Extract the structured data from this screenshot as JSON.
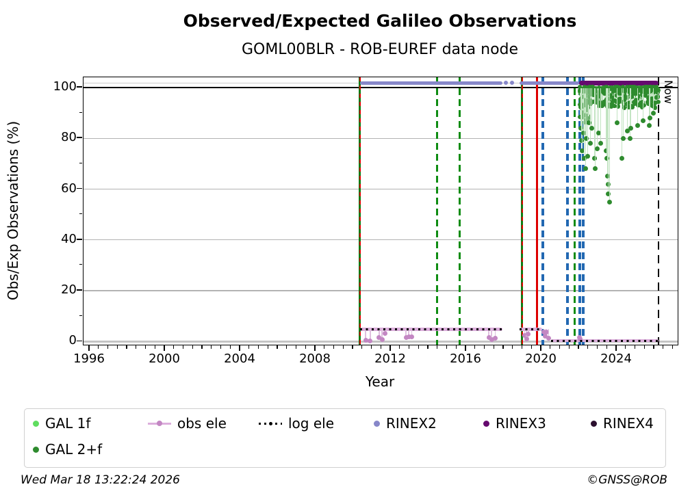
{
  "title": "Observed/Expected Galileo Observations",
  "subtitle": "GOML00BLR - ROB-EUREF data node",
  "footer": {
    "timestamp": "Wed Mar 18 13:22:24 2026",
    "copyright": "©GNSS@ROB"
  },
  "legend": {
    "items": [
      {
        "label": "GAL 1f",
        "marker": "dot",
        "color": "#5fdd5f",
        "row": 1,
        "col": 0
      },
      {
        "label": "obs ele",
        "marker": "line-dot",
        "color": "#c387c3",
        "line_color": "#dcaedc",
        "row": 1,
        "col": 1
      },
      {
        "label": "log ele",
        "marker": "dotted-line",
        "color": "#000000",
        "row": 1,
        "col": 2
      },
      {
        "label": "RINEX2",
        "marker": "dot",
        "color": "#8787c9",
        "row": 1,
        "col": 3
      },
      {
        "label": "RINEX3",
        "marker": "dot",
        "color": "#650a6e",
        "row": 1,
        "col": 4
      },
      {
        "label": "RINEX4",
        "marker": "dot",
        "color": "#2b0f2e",
        "row": 1,
        "col": 5
      },
      {
        "label": "GAL 2+f",
        "marker": "dot",
        "color": "#2e8b2e",
        "row": 2,
        "col": 0
      }
    ]
  },
  "chart_data": {
    "type": "scatter",
    "title": "Observed/Expected Galileo Observations",
    "subtitle": "GOML00BLR - ROB-EUREF data node",
    "xlabel": "Year",
    "ylabel": "Obs/Exp Observations (%)",
    "xlim": [
      1995.67,
      2027.2
    ],
    "ylim": [
      -1.5,
      104
    ],
    "x_ticks": [
      1996,
      2000,
      2004,
      2008,
      2012,
      2016,
      2020,
      2024
    ],
    "x_minor_step": 0.5,
    "y_ticks": [
      0,
      20,
      40,
      60,
      80,
      100
    ],
    "y_minor_ticks": [
      10,
      30,
      50,
      70,
      90
    ],
    "grid": {
      "gray_lines": [
        20,
        40,
        60,
        80
      ],
      "gray_color": "#b3b3b3",
      "black_line": 100,
      "marker_guide_line": 101.8,
      "zero_line": 0,
      "zero_line_color": "#c4c4c4"
    },
    "now_line": {
      "year": 2026.21,
      "label": "Now",
      "color": "#000000",
      "style": "dashed"
    },
    "event_lines": [
      {
        "year": 2010.36,
        "color": "#0e7d12",
        "style": "solid",
        "overlay": "red-dashed"
      },
      {
        "year": 2014.45,
        "color": "#0e8c12",
        "style": "dashed"
      },
      {
        "year": 2015.65,
        "color": "#0e8c12",
        "style": "dashed"
      },
      {
        "year": 2018.98,
        "color": "#0e7d12",
        "style": "solid",
        "overlay": "red-dashed"
      },
      {
        "year": 2019.75,
        "color": "#dd0000",
        "style": "solid"
      },
      {
        "year": 2020.08,
        "color": "#2268b2",
        "style": "dashed"
      },
      {
        "year": 2021.38,
        "color": "#2268b2",
        "style": "dashed"
      },
      {
        "year": 2021.75,
        "color": "#0e8c12",
        "style": "dashed"
      },
      {
        "year": 2022.02,
        "color": "#2268b2",
        "style": "dashed"
      },
      {
        "year": 2022.22,
        "color": "#2268b2",
        "style": "dashed"
      }
    ],
    "series": {
      "rinex2": {
        "label": "RINEX2",
        "color": "#8787c9",
        "y": 101.8,
        "segments": [
          [
            2010.36,
            2017.92
          ],
          [
            2018.85,
            2022.0
          ]
        ],
        "isolated_dots": [
          2018.12,
          2018.45
        ]
      },
      "rinex3": {
        "label": "RINEX3",
        "color": "#650a6e",
        "y": 101.8,
        "segments": [
          [
            2022.0,
            2026.22
          ]
        ]
      },
      "rinex4": {
        "label": "RINEX4",
        "color": "#2b0f2e",
        "segments": []
      },
      "gal_1f": {
        "label": "GAL 1f",
        "color": "#5fdd5f",
        "points": []
      },
      "gal_2f": {
        "label": "GAL 2+f",
        "color": "#2e8b2e",
        "stem_color": "#c2e4c2",
        "band": {
          "from": 2022.02,
          "to": 2026.22,
          "y_top": 100.4,
          "y_main": [
            98.0,
            100.4
          ],
          "y_scatter": [
            92.0,
            97.8
          ],
          "early_deep_until": 2022.5,
          "early_deep_range": [
            85.0,
            96.0
          ]
        },
        "dips": [
          [
            2022.08,
            84
          ],
          [
            2022.12,
            79
          ],
          [
            2022.18,
            75
          ],
          [
            2022.22,
            82
          ],
          [
            2022.28,
            72
          ],
          [
            2022.33,
            68
          ],
          [
            2022.38,
            80
          ],
          [
            2022.45,
            73
          ],
          [
            2022.52,
            86
          ],
          [
            2022.6,
            78
          ],
          [
            2022.68,
            84
          ],
          [
            2022.8,
            72
          ],
          [
            2022.86,
            68
          ],
          [
            2022.95,
            76
          ],
          [
            2023.05,
            82
          ],
          [
            2023.15,
            78
          ],
          [
            2023.42,
            75
          ],
          [
            2023.47,
            72
          ],
          [
            2023.5,
            65
          ],
          [
            2023.53,
            62
          ],
          [
            2023.56,
            58
          ],
          [
            2023.6,
            55
          ],
          [
            2024.02,
            86
          ],
          [
            2024.28,
            72
          ],
          [
            2024.33,
            80
          ],
          [
            2024.55,
            83
          ],
          [
            2024.7,
            80
          ],
          [
            2024.75,
            84
          ],
          [
            2025.1,
            85
          ],
          [
            2025.4,
            87
          ],
          [
            2025.73,
            85
          ],
          [
            2025.78,
            88
          ],
          [
            2025.95,
            90
          ]
        ]
      },
      "obs_ele": {
        "label": "obs ele",
        "line_color": "#dcaedc",
        "dot_color": "#c387c3",
        "stem_color": "#dfc0df",
        "high_level": 4.8,
        "low_level": 0.35,
        "high_segments": [
          [
            2010.36,
            2017.92
          ],
          [
            2018.85,
            2020.02
          ]
        ],
        "low_segments": [
          [
            2020.5,
            2026.22
          ]
        ],
        "dips": [
          [
            2010.66,
            0.5
          ],
          [
            2010.9,
            0.3
          ],
          [
            2011.38,
            1.5
          ],
          [
            2011.53,
            0.8
          ],
          [
            2011.7,
            3.2
          ],
          [
            2012.8,
            1.5
          ],
          [
            2012.95,
            1.8
          ],
          [
            2013.1,
            1.7
          ],
          [
            2017.2,
            1.5
          ],
          [
            2017.35,
            0.8
          ],
          [
            2017.55,
            1.4
          ],
          [
            2019.1,
            2.5
          ],
          [
            2019.2,
            1.0
          ],
          [
            2019.3,
            3.0
          ],
          [
            2020.12,
            3.6
          ],
          [
            2020.2,
            2.2
          ],
          [
            2020.28,
            3.8
          ],
          [
            2020.38,
            1.4
          ],
          [
            2022.0,
            1.6
          ],
          [
            2022.05,
            0.9
          ]
        ]
      },
      "log_ele": {
        "label": "log ele",
        "color": "#000000",
        "high_level": 4.8,
        "low_level": 0.35,
        "high_segments": [
          [
            2010.36,
            2017.92
          ],
          [
            2018.85,
            2020.02
          ]
        ],
        "low_segments": [
          [
            2020.5,
            2026.22
          ]
        ]
      }
    }
  }
}
